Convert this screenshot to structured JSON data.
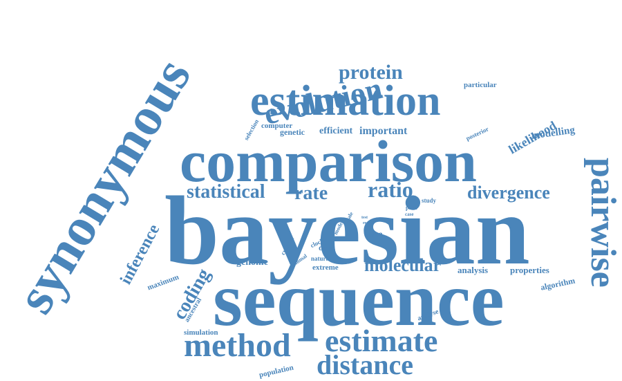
{
  "word_cloud": {
    "color": "#4a85ba",
    "words": [
      "bayesian",
      "comparison",
      "sequence",
      "synonymous",
      "estimation",
      "pairwise",
      "method",
      "estimate",
      "evolution",
      "distance",
      "protein",
      "ratio",
      "statistical",
      "rate",
      "divergence",
      "molecular",
      "coding",
      "inference",
      "likelihood",
      "important",
      "modelling",
      "genetic",
      "efficient",
      "computer",
      "particular",
      "posterior",
      "selection",
      "study",
      "time",
      "data",
      "genome",
      "analysis",
      "properties",
      "algorithm",
      "extreme",
      "maximum",
      "ancestral",
      "simulation",
      "population",
      "analyse",
      "current",
      "animal",
      "model",
      "scale",
      "clock",
      "natural",
      "prior",
      "case",
      "test",
      "real"
    ]
  }
}
